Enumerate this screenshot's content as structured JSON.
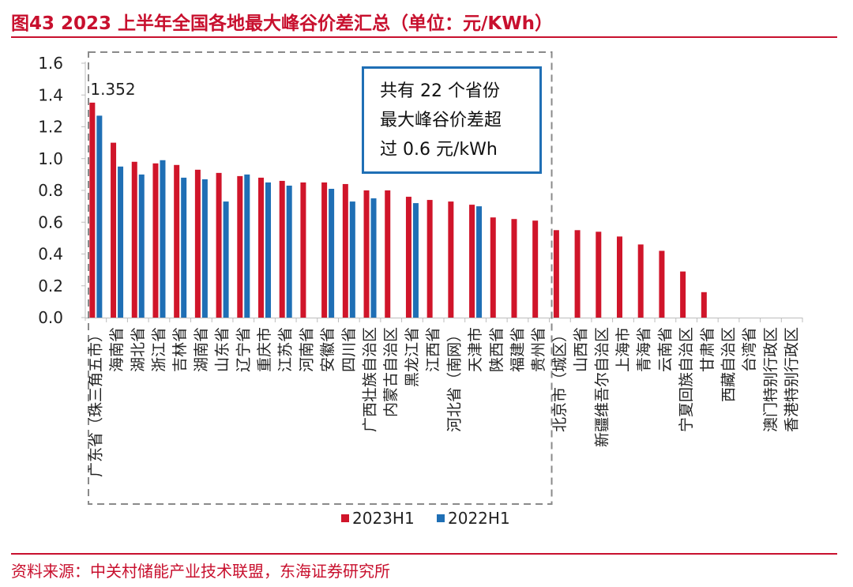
{
  "title": "图43  2023 上半年全国各地最大峰谷价差汇总（单位：元/KWh）",
  "source": "资料来源：中关村储能产业技术联盟，东海证券研究所",
  "annotation": {
    "line1": "共有 22 个省份",
    "line2": "最大峰谷价差超",
    "line3": "过 0.6 元/kWh"
  },
  "colors": {
    "accent": "#c8102e",
    "series_2023": "#d0152a",
    "series_2022": "#1f6fb5",
    "box": "#1f6fb5"
  },
  "chart_data": {
    "type": "bar",
    "title": "2023 上半年全国各地最大峰谷价差汇总（单位：元/KWh）",
    "ylim": [
      0,
      1.6
    ],
    "yticks": [
      "0.0",
      "0.2",
      "0.4",
      "0.6",
      "0.8",
      "1.0",
      "1.2",
      "1.4",
      "1.6"
    ],
    "categories": [
      "广东省（珠三角五市）",
      "海南省",
      "湖北省",
      "浙江省",
      "吉林省",
      "湖南省",
      "山东省",
      "辽宁省",
      "重庆市",
      "江苏省",
      "河南省",
      "安徽省",
      "四川省",
      "广西壮族自治区",
      "内蒙古自治区",
      "黑龙江省",
      "江西省",
      "河北省（南网）",
      "天津市",
      "陕西省",
      "福建省",
      "贵州省",
      "北京市（城区）",
      "山西省",
      "新疆维吾尔自治区",
      "上海市",
      "青海省",
      "云南省",
      "宁夏回族自治区",
      "甘肃省",
      "西藏自治区",
      "台湾省",
      "澳门特别行政区",
      "香港特别行政区"
    ],
    "series": [
      {
        "name": "2023H1",
        "values": [
          1.352,
          1.1,
          0.98,
          0.97,
          0.96,
          0.93,
          0.91,
          0.89,
          0.88,
          0.86,
          0.85,
          0.85,
          0.84,
          0.8,
          0.8,
          0.76,
          0.74,
          0.73,
          0.71,
          0.63,
          0.62,
          0.61,
          0.55,
          0.55,
          0.54,
          0.51,
          0.46,
          0.42,
          0.29,
          0.16,
          null,
          null,
          null,
          null
        ]
      },
      {
        "name": "2022H1",
        "values": [
          1.27,
          0.95,
          0.9,
          0.99,
          0.88,
          0.87,
          0.73,
          0.9,
          0.85,
          0.83,
          null,
          0.81,
          0.73,
          0.75,
          null,
          0.72,
          null,
          null,
          0.7,
          null,
          null,
          null,
          null,
          null,
          null,
          null,
          null,
          null,
          null,
          null,
          null,
          null,
          null,
          null
        ]
      }
    ],
    "data_labels": [
      {
        "category": "广东省（珠三角五市）",
        "series": "2023H1",
        "text": "1.352"
      }
    ],
    "legend": {
      "position": "bottom-center",
      "items": [
        "2023H1",
        "2022H1"
      ]
    },
    "highlight_group_count": 22
  }
}
